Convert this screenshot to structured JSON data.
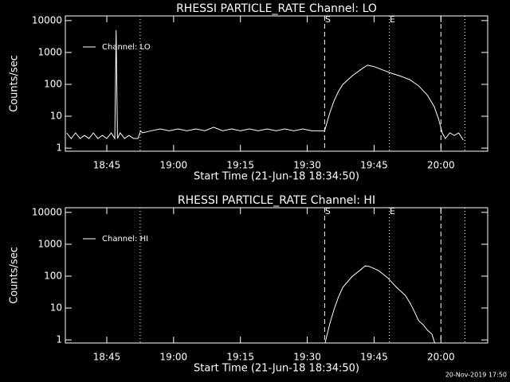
{
  "footer": "20-Nov-2019 17:50",
  "chart_data": [
    {
      "type": "line",
      "title": "RHESSI PARTICLE_RATE Channel: LO",
      "ylabel": "Counts/sec",
      "xlabel": "Start Time (21-Jun-18 18:34:50)",
      "log_y": true,
      "legend": "upper left",
      "xlim": [
        1115.7,
        1210.5
      ],
      "ylim": [
        0.8,
        14000
      ],
      "xticks": [
        {
          "value": 1125,
          "label": "18:45"
        },
        {
          "value": 1140,
          "label": "19:00"
        },
        {
          "value": 1155,
          "label": "19:15"
        },
        {
          "value": 1170,
          "label": "19:30"
        },
        {
          "value": 1185,
          "label": "19:45"
        },
        {
          "value": 1200,
          "label": "20:00"
        }
      ],
      "yticks": [
        1,
        10,
        100,
        1000,
        10000
      ],
      "markers": [
        {
          "x": 1132.5,
          "style": "dotted"
        },
        {
          "x": 1173.9,
          "style": "dashed",
          "label": "S"
        },
        {
          "x": 1188.4,
          "style": "dotted",
          "label": "E"
        },
        {
          "x": 1200,
          "style": "dashed"
        },
        {
          "x": 1205.4,
          "style": "dotted"
        }
      ],
      "series": [
        {
          "name": "Channel: LO",
          "color": "#ffffff",
          "x": [
            1116,
            1117,
            1118,
            1119,
            1120,
            1121,
            1122,
            1123,
            1124,
            1125,
            1126,
            1126.8,
            1127.1,
            1127.4,
            1128,
            1129,
            1130,
            1131,
            1132,
            1132.6,
            1133,
            1135,
            1137,
            1139,
            1141,
            1143,
            1145,
            1147,
            1149,
            1151,
            1153,
            1155,
            1157,
            1159,
            1161,
            1163,
            1165,
            1167,
            1169,
            1171,
            1173.9,
            1175,
            1176,
            1177,
            1178,
            1180,
            1182,
            1183.5,
            1185,
            1187,
            1189,
            1191,
            1193,
            1195,
            1197,
            1198.5,
            1199.5,
            1200.3,
            1201,
            1202,
            1203,
            1204,
            1205
          ],
          "values": [
            3,
            2,
            3,
            2,
            2.5,
            2,
            3,
            2,
            2.5,
            2,
            3,
            2,
            5000,
            2,
            3,
            2,
            2.5,
            2,
            2,
            3.5,
            3,
            3.5,
            4,
            3.5,
            4,
            3.5,
            4,
            3.5,
            4.5,
            3.5,
            4,
            3.5,
            4,
            3.5,
            4,
            3.5,
            4,
            3.5,
            4,
            3.5,
            3.5,
            12,
            30,
            60,
            100,
            180,
            290,
            400,
            360,
            280,
            220,
            180,
            140,
            90,
            45,
            20,
            8,
            3,
            2,
            3,
            2.5,
            3,
            1.8
          ]
        }
      ]
    },
    {
      "type": "line",
      "title": "RHESSI PARTICLE_RATE Channel: HI",
      "ylabel": "Counts/sec",
      "xlabel": "Start Time (21-Jun-18 18:34:50)",
      "log_y": true,
      "legend": "upper left",
      "xlim": [
        1115.7,
        1210.5
      ],
      "ylim": [
        0.8,
        14000
      ],
      "xticks": [
        {
          "value": 1125,
          "label": "18:45"
        },
        {
          "value": 1140,
          "label": "19:00"
        },
        {
          "value": 1155,
          "label": "19:15"
        },
        {
          "value": 1170,
          "label": "19:30"
        },
        {
          "value": 1185,
          "label": "19:45"
        },
        {
          "value": 1200,
          "label": "20:00"
        }
      ],
      "yticks": [
        1,
        10,
        100,
        1000,
        10000
      ],
      "markers": [
        {
          "x": 1132.5,
          "style": "dotted"
        },
        {
          "x": 1173.9,
          "style": "dashed",
          "label": "S"
        },
        {
          "x": 1188.4,
          "style": "dotted",
          "label": "E"
        },
        {
          "x": 1200,
          "style": "dashed"
        },
        {
          "x": 1205.4,
          "style": "dotted"
        }
      ],
      "series": [
        {
          "name": "Channel: HI",
          "color": "#ffffff",
          "x": [
            1174,
            1175,
            1176,
            1177,
            1178,
            1180,
            1182,
            1183,
            1184,
            1186,
            1188,
            1190,
            1192,
            1193,
            1194,
            1195,
            1196,
            1197,
            1198,
            1198.6
          ],
          "values": [
            0.8,
            3,
            9,
            22,
            45,
            95,
            160,
            210,
            200,
            150,
            90,
            45,
            25,
            15,
            8,
            4,
            3,
            2,
            1.5,
            0.8
          ]
        }
      ]
    }
  ]
}
